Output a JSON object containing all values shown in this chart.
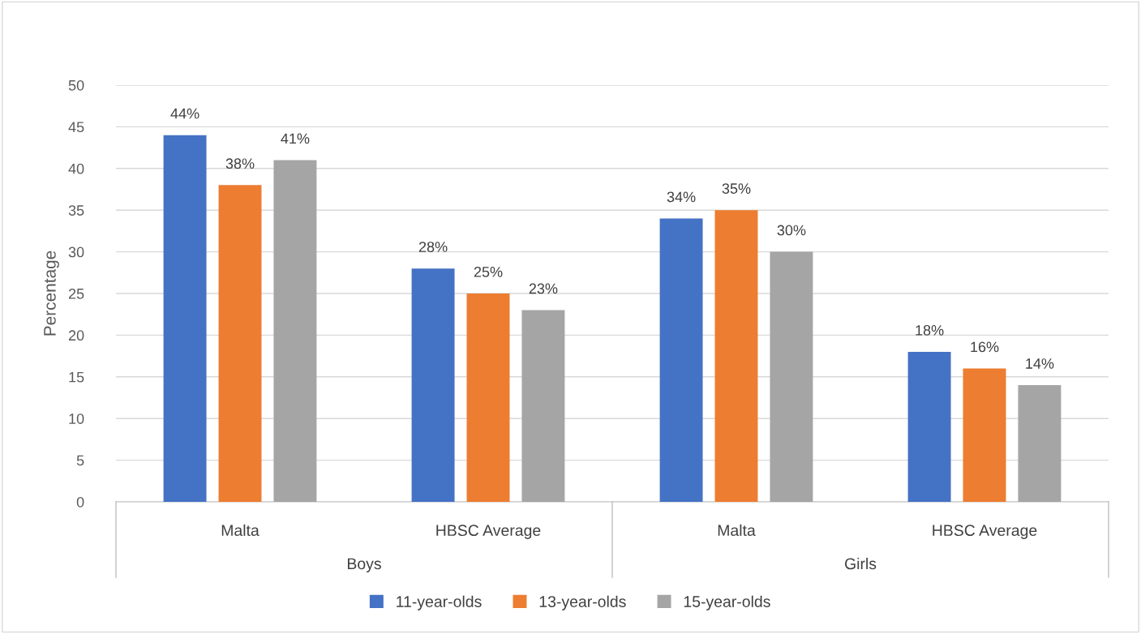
{
  "chart_data": {
    "type": "bar",
    "ylabel": "Percentage",
    "categories": [
      "Malta",
      "HBSC Average",
      "Malta",
      "HBSC Average"
    ],
    "series": [
      {
        "name": "11-year-olds",
        "color": "#4472c4",
        "values": [
          44,
          28,
          34,
          18
        ],
        "value_labels": [
          "44%",
          "28%",
          "34%",
          "18%"
        ]
      },
      {
        "name": "13-year-olds",
        "color": "#ed7d31",
        "values": [
          38,
          25,
          35,
          16
        ],
        "value_labels": [
          "38%",
          "25%",
          "35%",
          "16%"
        ]
      },
      {
        "name": "15-year-olds",
        "color": "#a5a5a5",
        "values": [
          41,
          23,
          30,
          14
        ],
        "value_labels": [
          "41%",
          "23%",
          "30%",
          "14%"
        ]
      }
    ],
    "annotations": [
      "Boys",
      "Girls"
    ],
    "ylim": [
      0,
      50
    ],
    "yticks": [
      0,
      5,
      10,
      15,
      20,
      25,
      30,
      35,
      40,
      45,
      50
    ],
    "grid": "y",
    "legend": "bottom"
  }
}
